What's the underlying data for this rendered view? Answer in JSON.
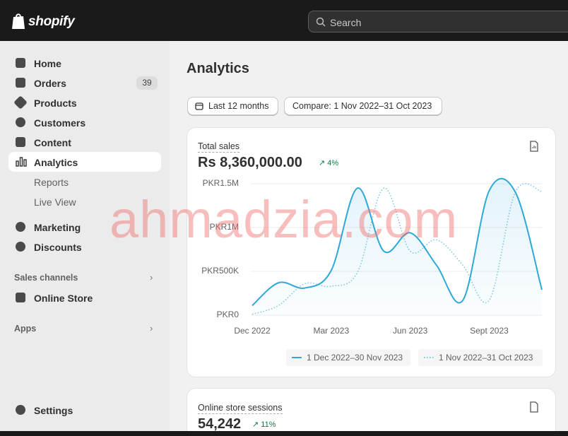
{
  "header": {
    "logo": "shopify",
    "search": "Search"
  },
  "nav": {
    "home": "Home",
    "orders": "Orders",
    "orders_badge": 39,
    "products": "Products",
    "customers": "Customers",
    "content": "Content",
    "analytics": "Analytics",
    "reports": "Reports",
    "live_view": "Live View",
    "marketing": "Marketing",
    "discounts": "Discounts",
    "sales_channels": "Sales channels",
    "online_store": "Online Store",
    "apps": "Apps",
    "settings": "Settings"
  },
  "main": {
    "title": "Analytics",
    "range_button": "Last 12 months",
    "compare_button": "Compare: 1 Nov 2022–31 Oct 2023"
  },
  "total_sales": {
    "label": "Total sales",
    "value": "Rs 8,360,000.00",
    "change": "4%"
  },
  "sessions": {
    "label": "Online store sessions",
    "value": "54,242",
    "change": "11%"
  },
  "watermark": "ahmadzia.com",
  "chart_data": {
    "type": "line",
    "categories": [
      "Dec 2022",
      null,
      null,
      "Mar 2023",
      null,
      null,
      "Jun 2023",
      null,
      null,
      "Sept 2023",
      null,
      null
    ],
    "series": [
      {
        "name": "1 Dec 2022–30 Nov 2023",
        "color": "#2fa8d8",
        "style": "solid",
        "values": [
          110000,
          370000,
          310000,
          510000,
          1450000,
          730000,
          940000,
          570000,
          170000,
          1420000,
          1400000,
          290000
        ]
      },
      {
        "name": "1 Nov 2022–31 Oct 2023",
        "color": "#7cc6e6",
        "style": "dotted",
        "values": [
          10000,
          110000,
          360000,
          330000,
          490000,
          1450000,
          730000,
          860000,
          570000,
          170000,
          1410000,
          1410000
        ]
      }
    ],
    "ylim": [
      0,
      1500000
    ],
    "yticks": [
      {
        "value": 0,
        "label": "PKR0"
      },
      {
        "value": 500000,
        "label": "PKR500K"
      },
      {
        "value": 1000000,
        "label": "PKR1M"
      },
      {
        "value": 1500000,
        "label": "PKR1.5M"
      }
    ],
    "grid": true
  }
}
